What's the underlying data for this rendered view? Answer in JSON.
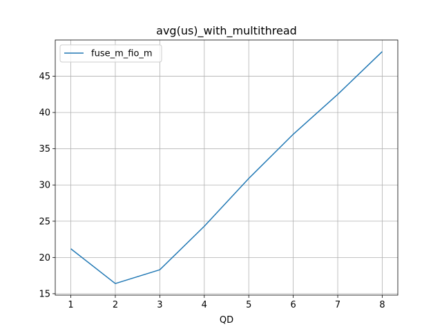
{
  "chart_data": {
    "type": "line",
    "title": "avg(us)_with_multithread",
    "xlabel": "QD",
    "ylabel": "",
    "x": [
      1,
      2,
      3,
      4,
      5,
      6,
      7,
      8
    ],
    "series": [
      {
        "name": "fuse_m_fio_m",
        "color": "#1f77b4",
        "values": [
          21.2,
          16.4,
          18.3,
          24.3,
          30.9,
          37.0,
          42.5,
          48.4
        ]
      }
    ],
    "xticks": [
      1,
      2,
      3,
      4,
      5,
      6,
      7,
      8
    ],
    "yticks": [
      15,
      20,
      25,
      30,
      35,
      40,
      45
    ],
    "xlim": [
      0.65,
      8.35
    ],
    "ylim": [
      14.8,
      50.0
    ],
    "grid": true,
    "legend_position": "top-left"
  }
}
